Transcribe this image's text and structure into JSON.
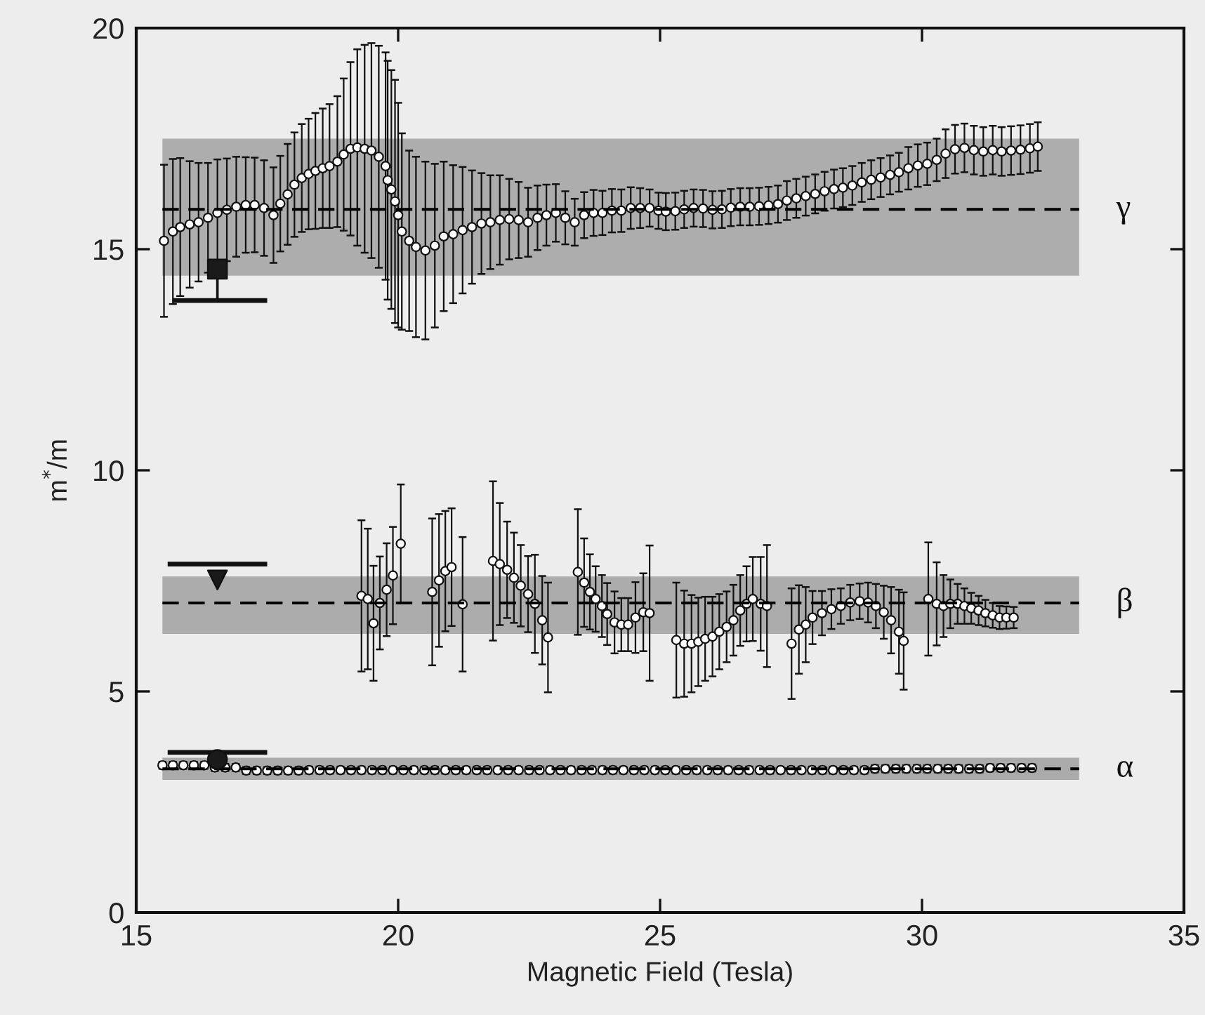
{
  "chart_data": {
    "type": "scatter",
    "xlabel": "Magnetic Field (Tesla)",
    "ylabel": "m$^{*}$/m",
    "xlim": [
      15,
      35
    ],
    "ylim": [
      0,
      20
    ],
    "xticks": [
      15,
      20,
      25,
      30,
      35
    ],
    "yticks": [
      0,
      5,
      10,
      15,
      20
    ],
    "series": [
      {
        "type": "line",
        "name": "γ",
        "line_style": "dashed",
        "color": "#000000",
        "x": [
          15.5,
          33
        ],
        "values": [
          15.9,
          15.9
        ],
        "lower": [
          14.4,
          14.4
        ],
        "upper": [
          17.5,
          17.5
        ]
      },
      {
        "type": "line",
        "name": "β",
        "line_style": "dashed",
        "color": "#000000",
        "x": [
          15.5,
          33
        ],
        "values": [
          7.0,
          7.0
        ],
        "lower": [
          6.3,
          6.3
        ],
        "upper": [
          7.6,
          7.6
        ]
      },
      {
        "type": "line",
        "name": "α",
        "line_style": "dashed",
        "color": "#000000",
        "x": [
          15.5,
          33
        ],
        "values": [
          3.25,
          3.25
        ],
        "lower": [
          3.0,
          3.0
        ],
        "upper": [
          3.5,
          3.5
        ]
      },
      {
        "marker": "circle",
        "color": "#ffffff",
        "x": [
          15.53,
          15.7,
          15.84,
          16.02,
          16.19,
          16.37,
          16.55,
          16.73,
          16.91,
          17.09,
          17.26,
          17.44,
          17.62,
          17.75,
          17.89,
          18.02,
          18.16,
          18.29,
          18.42,
          18.56,
          18.69,
          18.84,
          18.96,
          19.09,
          19.22,
          19.36,
          19.49,
          19.63,
          19.76,
          19.8,
          19.87,
          19.94,
          20.0,
          20.07,
          20.21,
          20.34,
          20.52,
          20.7,
          20.87,
          21.05,
          21.23,
          21.41,
          21.59,
          21.76,
          21.94,
          22.12,
          22.3,
          22.48,
          22.66,
          22.83,
          23.01,
          23.19,
          23.37,
          23.55,
          23.73,
          23.9,
          24.08,
          24.26,
          24.44,
          24.62,
          24.8,
          24.97,
          25.11,
          25.29,
          25.46,
          25.64,
          25.82,
          26.0,
          26.18,
          26.35,
          26.53,
          26.71,
          26.89,
          27.07,
          27.25,
          27.42,
          27.6,
          27.78,
          27.96,
          28.14,
          28.32,
          28.49,
          28.67,
          28.85,
          29.03,
          29.21,
          29.39,
          29.56,
          29.74,
          29.92,
          30.1,
          30.28,
          30.45,
          30.63,
          30.81,
          30.99,
          31.17,
          31.35,
          31.52,
          31.7,
          31.88,
          32.06,
          32.21
        ],
        "values": [
          15.19,
          15.4,
          15.5,
          15.56,
          15.61,
          15.71,
          15.82,
          15.89,
          15.96,
          16.0,
          16.0,
          15.93,
          15.77,
          16.03,
          16.24,
          16.46,
          16.61,
          16.7,
          16.77,
          16.83,
          16.88,
          16.98,
          17.14,
          17.27,
          17.3,
          17.27,
          17.23,
          17.09,
          16.88,
          16.56,
          16.35,
          16.08,
          15.77,
          15.4,
          15.19,
          15.05,
          14.97,
          15.08,
          15.29,
          15.34,
          15.43,
          15.5,
          15.58,
          15.61,
          15.66,
          15.68,
          15.66,
          15.61,
          15.71,
          15.77,
          15.82,
          15.71,
          15.61,
          15.77,
          15.82,
          15.82,
          15.87,
          15.87,
          15.93,
          15.93,
          15.93,
          15.87,
          15.85,
          15.86,
          15.9,
          15.93,
          15.92,
          15.89,
          15.9,
          15.94,
          15.96,
          15.96,
          15.97,
          15.99,
          16.02,
          16.1,
          16.15,
          16.2,
          16.25,
          16.31,
          16.36,
          16.39,
          16.44,
          16.51,
          16.57,
          16.62,
          16.68,
          16.74,
          16.83,
          16.89,
          16.93,
          17.02,
          17.16,
          17.26,
          17.29,
          17.24,
          17.21,
          17.24,
          17.21,
          17.23,
          17.25,
          17.28,
          17.32
        ],
        "errors": [
          1.72,
          1.64,
          1.56,
          1.43,
          1.34,
          1.24,
          1.21,
          1.16,
          1.13,
          1.08,
          1.07,
          1.08,
          1.08,
          1.08,
          1.14,
          1.18,
          1.22,
          1.25,
          1.31,
          1.35,
          1.4,
          1.48,
          1.72,
          1.96,
          2.22,
          2.35,
          2.43,
          2.51,
          2.57,
          2.7,
          2.7,
          2.75,
          2.54,
          2.22,
          2.04,
          2.04,
          2.01,
          1.85,
          1.69,
          1.56,
          1.43,
          1.28,
          1.14,
          1.06,
          1.01,
          0.91,
          0.86,
          0.78,
          0.73,
          0.69,
          0.65,
          0.6,
          0.53,
          0.52,
          0.52,
          0.5,
          0.49,
          0.48,
          0.47,
          0.45,
          0.42,
          0.41,
          0.42,
          0.42,
          0.42,
          0.42,
          0.42,
          0.42,
          0.42,
          0.42,
          0.42,
          0.42,
          0.42,
          0.42,
          0.42,
          0.44,
          0.44,
          0.44,
          0.44,
          0.44,
          0.44,
          0.44,
          0.44,
          0.44,
          0.44,
          0.44,
          0.44,
          0.44,
          0.48,
          0.48,
          0.48,
          0.48,
          0.55,
          0.55,
          0.55,
          0.55,
          0.55,
          0.55,
          0.55,
          0.55,
          0.55,
          0.55,
          0.55
        ]
      },
      {
        "marker": "circle",
        "color": "#ffffff",
        "x": [
          19.3,
          19.42,
          19.53,
          19.65,
          19.78,
          19.9,
          20.05,
          20.65,
          20.78,
          20.9,
          21.02,
          21.23,
          21.81,
          21.94,
          22.08,
          22.21,
          22.34,
          22.48,
          22.61,
          22.75,
          22.86,
          23.43,
          23.55,
          23.66,
          23.77,
          23.89,
          23.99,
          24.13,
          24.26,
          24.39,
          24.53,
          24.68,
          24.8,
          25.31,
          25.46,
          25.6,
          25.73,
          25.86,
          26.0,
          26.13,
          26.27,
          26.4,
          26.53,
          26.65,
          26.77,
          26.92,
          27.04,
          27.51,
          27.65,
          27.78,
          27.91,
          28.09,
          28.27,
          28.45,
          28.63,
          28.81,
          28.97,
          29.12,
          29.27,
          29.41,
          29.56,
          29.65,
          30.12,
          30.28,
          30.41,
          30.54,
          30.68,
          30.81,
          30.94,
          31.08,
          31.21,
          31.35,
          31.48,
          31.61,
          31.75
        ],
        "values": [
          7.16,
          7.09,
          6.54,
          7.0,
          7.3,
          7.62,
          8.34,
          7.25,
          7.51,
          7.72,
          7.81,
          6.97,
          7.95,
          7.88,
          7.75,
          7.57,
          7.39,
          7.2,
          6.98,
          6.61,
          6.22,
          7.7,
          7.46,
          7.25,
          7.09,
          6.93,
          6.75,
          6.56,
          6.51,
          6.51,
          6.67,
          6.79,
          6.77,
          6.16,
          6.08,
          6.08,
          6.12,
          6.19,
          6.24,
          6.35,
          6.46,
          6.61,
          6.83,
          6.98,
          7.09,
          6.98,
          6.93,
          6.08,
          6.4,
          6.51,
          6.67,
          6.77,
          6.86,
          6.93,
          7.01,
          7.04,
          7.01,
          6.93,
          6.79,
          6.61,
          6.35,
          6.14,
          7.09,
          6.98,
          6.93,
          6.98,
          6.98,
          6.93,
          6.88,
          6.83,
          6.77,
          6.72,
          6.67,
          6.67,
          6.67
        ],
        "errors": [
          1.71,
          1.59,
          1.3,
          1.05,
          1.05,
          1.1,
          1.34,
          1.66,
          1.5,
          1.36,
          1.33,
          1.52,
          1.8,
          1.38,
          1.09,
          1.02,
          0.92,
          0.86,
          1.11,
          1.0,
          1.24,
          1.42,
          1.0,
          0.85,
          0.74,
          0.7,
          0.7,
          0.7,
          0.6,
          0.6,
          0.8,
          0.88,
          1.53,
          1.3,
          1.2,
          1.1,
          1.0,
          0.95,
          0.9,
          0.85,
          0.8,
          0.8,
          0.8,
          0.85,
          0.95,
          1.06,
          1.38,
          1.25,
          1.0,
          0.85,
          0.6,
          0.5,
          0.45,
          0.4,
          0.4,
          0.4,
          0.45,
          0.5,
          0.6,
          0.75,
          0.95,
          1.1,
          1.28,
          0.94,
          0.7,
          0.55,
          0.45,
          0.4,
          0.35,
          0.33,
          0.3,
          0.28,
          0.26,
          0.25,
          0.24
        ]
      },
      {
        "marker": "circle",
        "color": "#ffffff",
        "x": [
          15.5,
          15.7,
          15.9,
          16.1,
          16.3,
          16.5,
          16.7,
          16.9,
          17.1,
          17.3,
          17.5,
          17.7,
          17.9,
          18.1,
          18.3,
          18.5,
          18.7,
          18.9,
          19.1,
          19.3,
          19.5,
          19.7,
          19.9,
          20.1,
          20.3,
          20.5,
          20.7,
          20.9,
          21.1,
          21.3,
          21.5,
          21.7,
          21.9,
          22.1,
          22.3,
          22.5,
          22.7,
          22.9,
          23.1,
          23.3,
          23.5,
          23.7,
          23.9,
          24.1,
          24.3,
          24.5,
          24.7,
          24.9,
          25.1,
          25.3,
          25.5,
          25.7,
          25.9,
          26.1,
          26.3,
          26.5,
          26.7,
          26.9,
          27.1,
          27.3,
          27.5,
          27.7,
          27.9,
          28.1,
          28.3,
          28.5,
          28.7,
          28.9,
          29.1,
          29.3,
          29.5,
          29.7,
          29.9,
          30.1,
          30.3,
          30.5,
          30.7,
          30.9,
          31.1,
          31.3,
          31.5,
          31.7,
          31.9,
          32.1
        ],
        "values": [
          3.33,
          3.33,
          3.33,
          3.33,
          3.33,
          3.28,
          3.28,
          3.28,
          3.21,
          3.21,
          3.21,
          3.21,
          3.21,
          3.21,
          3.22,
          3.22,
          3.22,
          3.22,
          3.22,
          3.22,
          3.22,
          3.22,
          3.22,
          3.22,
          3.22,
          3.22,
          3.22,
          3.22,
          3.22,
          3.22,
          3.22,
          3.22,
          3.22,
          3.22,
          3.22,
          3.22,
          3.22,
          3.22,
          3.22,
          3.22,
          3.22,
          3.22,
          3.22,
          3.22,
          3.22,
          3.22,
          3.22,
          3.22,
          3.22,
          3.22,
          3.22,
          3.22,
          3.22,
          3.22,
          3.22,
          3.22,
          3.22,
          3.22,
          3.22,
          3.22,
          3.22,
          3.22,
          3.22,
          3.22,
          3.22,
          3.22,
          3.22,
          3.22,
          3.25,
          3.25,
          3.25,
          3.25,
          3.25,
          3.25,
          3.25,
          3.25,
          3.25,
          3.25,
          3.25,
          3.27,
          3.27,
          3.27,
          3.27,
          3.27
        ],
        "errors": [
          0.08,
          0.08,
          0.08,
          0.08,
          0.08,
          0.08,
          0.08,
          0.08,
          0.08,
          0.08,
          0.08,
          0.08,
          0.08,
          0.08,
          0.08,
          0.08,
          0.08,
          0.08,
          0.08,
          0.08,
          0.08,
          0.08,
          0.08,
          0.08,
          0.08,
          0.08,
          0.08,
          0.08,
          0.08,
          0.08,
          0.08,
          0.08,
          0.08,
          0.08,
          0.08,
          0.08,
          0.08,
          0.08,
          0.08,
          0.08,
          0.08,
          0.08,
          0.08,
          0.08,
          0.08,
          0.08,
          0.08,
          0.08,
          0.08,
          0.08,
          0.08,
          0.08,
          0.08,
          0.08,
          0.08,
          0.08,
          0.08,
          0.08,
          0.08,
          0.08,
          0.08,
          0.08,
          0.08,
          0.08,
          0.08,
          0.08,
          0.08,
          0.08,
          0.08,
          0.08,
          0.08,
          0.08,
          0.08,
          0.08,
          0.08,
          0.08,
          0.08,
          0.08,
          0.08,
          0.08,
          0.08,
          0.08,
          0.08,
          0.08
        ]
      },
      {
        "marker": "square",
        "color": "#1a1a1a",
        "x": [
          16.55
        ],
        "values": [
          14.55
        ],
        "errors": [
          [
            13.84,
            14.55
          ]
        ]
      },
      {
        "marker": "triangle",
        "color": "#1a1a1a",
        "x": [
          16.55
        ],
        "values": [
          7.52
        ]
      },
      {
        "marker": "circle",
        "color": "#1a1a1a",
        "x": [
          16.55
        ],
        "values": [
          3.46
        ]
      },
      {
        "type": "line",
        "line_style": "solid",
        "color": "#111111",
        "x": [
          15.7,
          17.5
        ],
        "values": [
          13.84,
          13.84
        ]
      },
      {
        "type": "line",
        "line_style": "solid",
        "color": "#111111",
        "x": [
          15.6,
          17.5
        ],
        "values": [
          7.88,
          7.88
        ]
      },
      {
        "type": "line",
        "line_style": "solid",
        "color": "#111111",
        "x": [
          15.6,
          17.5
        ],
        "values": [
          3.62,
          3.62
        ]
      }
    ]
  }
}
